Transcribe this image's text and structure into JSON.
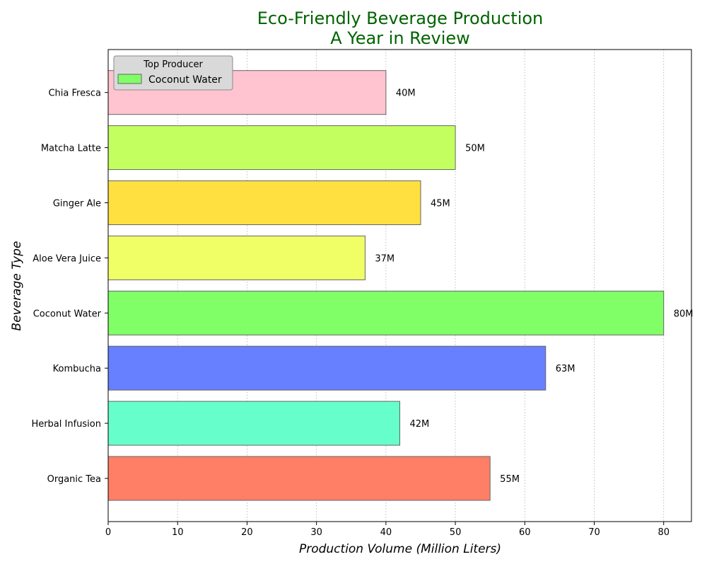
{
  "chart_data": {
    "type": "bar",
    "orientation": "horizontal",
    "title_line1": "Eco-Friendly Beverage Production",
    "title_line2": "A Year in Review",
    "xlabel": "Production Volume (Million Liters)",
    "ylabel": "Beverage Type",
    "xlim": [
      0,
      84
    ],
    "x_ticks": [
      "0",
      "10",
      "20",
      "30",
      "40",
      "50",
      "60",
      "70",
      "80"
    ],
    "grid": "x-dotted",
    "categories": [
      "Organic Tea",
      "Herbal Infusion",
      "Kombucha",
      "Coconut Water",
      "Aloe Vera Juice",
      "Ginger Ale",
      "Matcha Latte",
      "Chia Fresca"
    ],
    "values": [
      55,
      42,
      63,
      80,
      37,
      45,
      50,
      40
    ],
    "value_labels": [
      "55M",
      "42M",
      "63M",
      "80M",
      "37M",
      "45M",
      "50M",
      "40M"
    ],
    "colors": [
      "#ff7f66",
      "#66ffcc",
      "#6680ff",
      "#80ff66",
      "#f0ff66",
      "#ffe040",
      "#c4ff60",
      "#ffc4d0"
    ],
    "legend": {
      "title": "Top Producer",
      "entries": [
        {
          "label": "Coconut Water",
          "color": "#80ff66"
        }
      ],
      "placement": "top-left"
    },
    "title_color": "#006400"
  }
}
